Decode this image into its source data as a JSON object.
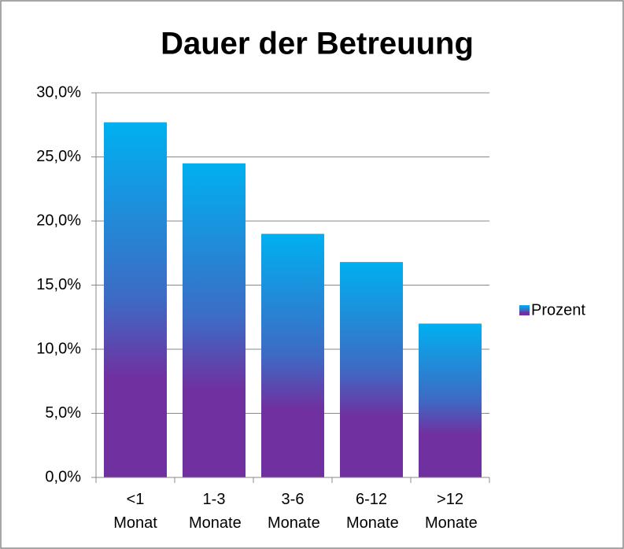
{
  "chart_data": {
    "type": "bar",
    "title": "Dauer der Betreuung",
    "categories": [
      "<1 Monat",
      "1-3 Monate",
      "3-6 Monate",
      "6-12 Monate",
      ">12 Monate"
    ],
    "series": [
      {
        "name": "Prozent",
        "colors": [
          "#00b0f0",
          "#7030a0"
        ],
        "values": [
          27.7,
          24.5,
          19.0,
          16.8,
          12.0
        ]
      }
    ],
    "ylim": [
      0,
      30
    ],
    "yticks": [
      {
        "value": 0,
        "label": "0,0%"
      },
      {
        "value": 5,
        "label": "5,0%"
      },
      {
        "value": 10,
        "label": "10,0%"
      },
      {
        "value": 15,
        "label": "15,0%"
      },
      {
        "value": 20,
        "label": "20,0%"
      },
      {
        "value": 25,
        "label": "25,0%"
      },
      {
        "value": 30,
        "label": "30,0%"
      }
    ],
    "grid": true,
    "legend": "right"
  }
}
